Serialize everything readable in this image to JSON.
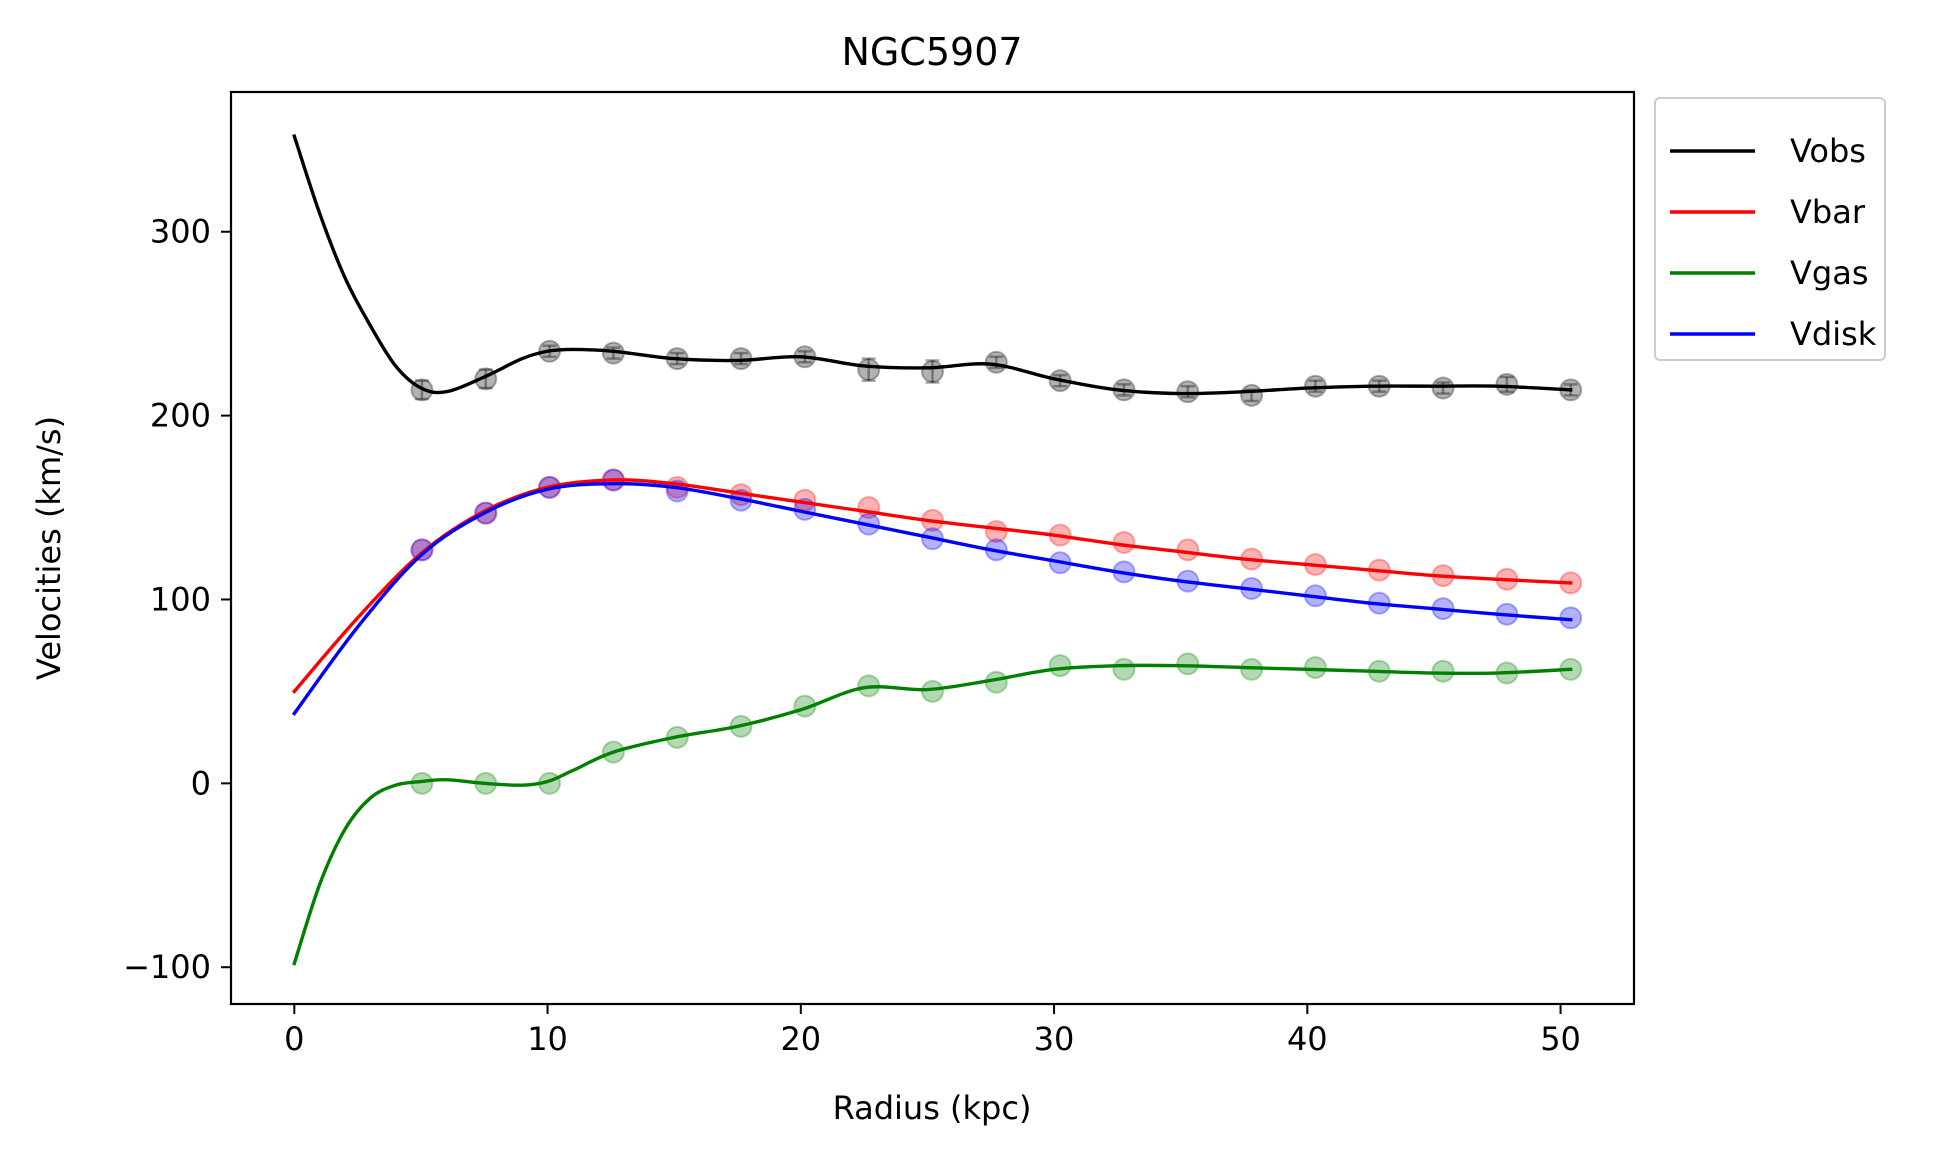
{
  "chart_data": {
    "type": "line",
    "title": "NGC5907",
    "xlabel": "Radius (kpc)",
    "ylabel": "Velocities (km/s)",
    "xlim": [
      -2.5,
      52.9
    ],
    "ylim": [
      -120,
      376
    ],
    "xticks": [
      0,
      10,
      20,
      30,
      40,
      50
    ],
    "yticks": [
      -100,
      0,
      100,
      200,
      300
    ],
    "xtick_labels": [
      "0",
      "10",
      "20",
      "30",
      "40",
      "50"
    ],
    "ytick_labels": [
      "−100",
      "0",
      "100",
      "200",
      "300"
    ],
    "grid": false,
    "legend_position": "outside-upper-right",
    "radius": [
      5.04,
      7.56,
      10.08,
      12.6,
      15.12,
      17.64,
      20.16,
      22.68,
      25.2,
      27.72,
      30.24,
      32.76,
      35.28,
      37.8,
      40.32,
      42.84,
      45.36,
      47.88,
      50.4
    ],
    "series": [
      {
        "name": "Vobs",
        "color": "#000000",
        "points": [
          214,
          220,
          235,
          234,
          231,
          231,
          232,
          225,
          224,
          229,
          219,
          214,
          213,
          211,
          216,
          216,
          215,
          217,
          214
        ],
        "errors": [
          5,
          5,
          3,
          3,
          3,
          3,
          3,
          6,
          6,
          3,
          3,
          3,
          3,
          3,
          3,
          3,
          3,
          4,
          3
        ],
        "curve_x": [
          0,
          1,
          2,
          3,
          4,
          5,
          6,
          7.5,
          9,
          10,
          11,
          12.6,
          15,
          17.5,
          20,
          22.5,
          25,
          27.5,
          30,
          32.5,
          35,
          37.5,
          40,
          42.5,
          45,
          47.5,
          50.4
        ],
        "curve_y": [
          352,
          310,
          275,
          249,
          227,
          215,
          213,
          221,
          231,
          235,
          236,
          235,
          231,
          230,
          232,
          227,
          226,
          228,
          220,
          214,
          212,
          213,
          215,
          216,
          216,
          216,
          214
        ]
      },
      {
        "name": "Vbar",
        "color": "#ff0000",
        "points": [
          127,
          147,
          161,
          165,
          161,
          157,
          154,
          150,
          143,
          137,
          135,
          131,
          127,
          122,
          119,
          116,
          113,
          111,
          109
        ],
        "curve_x": [
          0,
          2.5,
          5,
          7.5,
          10,
          12.6,
          15,
          17.5,
          20,
          22.5,
          25,
          27.5,
          30,
          32.5,
          35,
          37.5,
          40,
          42.5,
          45,
          47.5,
          50.4
        ],
        "curve_y": [
          50,
          90,
          125,
          148,
          161,
          165,
          163,
          158,
          153,
          148,
          143,
          139,
          135,
          130,
          126,
          122,
          119,
          116,
          113,
          111,
          109
        ]
      },
      {
        "name": "Vgas",
        "color": "#008000",
        "points": [
          0,
          0,
          0,
          17,
          25,
          31,
          42,
          53,
          50,
          55,
          64,
          62,
          65,
          62,
          63,
          61,
          61,
          60,
          62
        ],
        "curve_x": [
          0,
          1,
          2,
          3,
          4,
          5,
          6,
          7.5,
          9,
          10,
          11,
          12.6,
          15,
          17.5,
          20,
          22.5,
          25,
          27.5,
          30,
          32.5,
          35,
          37.5,
          40,
          42.5,
          45,
          47.5,
          50.4
        ],
        "curve_y": [
          -98,
          -55,
          -25,
          -8,
          -1,
          1,
          2,
          0,
          -1,
          1,
          7,
          17,
          25,
          31,
          40,
          52,
          51,
          56,
          62,
          64,
          64,
          63,
          62,
          61,
          60,
          60,
          62
        ]
      },
      {
        "name": "Vdisk",
        "color": "#0000ff",
        "points": [
          127,
          147,
          161,
          165,
          159,
          154,
          149,
          141,
          133,
          127,
          120,
          115,
          110,
          106,
          102,
          98,
          95,
          92,
          90
        ],
        "curve_x": [
          0,
          2.5,
          5,
          7.5,
          10,
          12.6,
          15,
          17.5,
          20,
          22.5,
          25,
          27.5,
          30,
          32.5,
          35,
          37.5,
          40,
          42.5,
          45,
          47.5,
          50.4
        ],
        "curve_y": [
          38,
          85,
          124,
          147,
          160,
          163,
          161,
          155,
          148,
          141,
          134,
          127,
          121,
          115,
          110,
          106,
          102,
          98,
          95,
          92,
          89
        ]
      }
    ]
  }
}
